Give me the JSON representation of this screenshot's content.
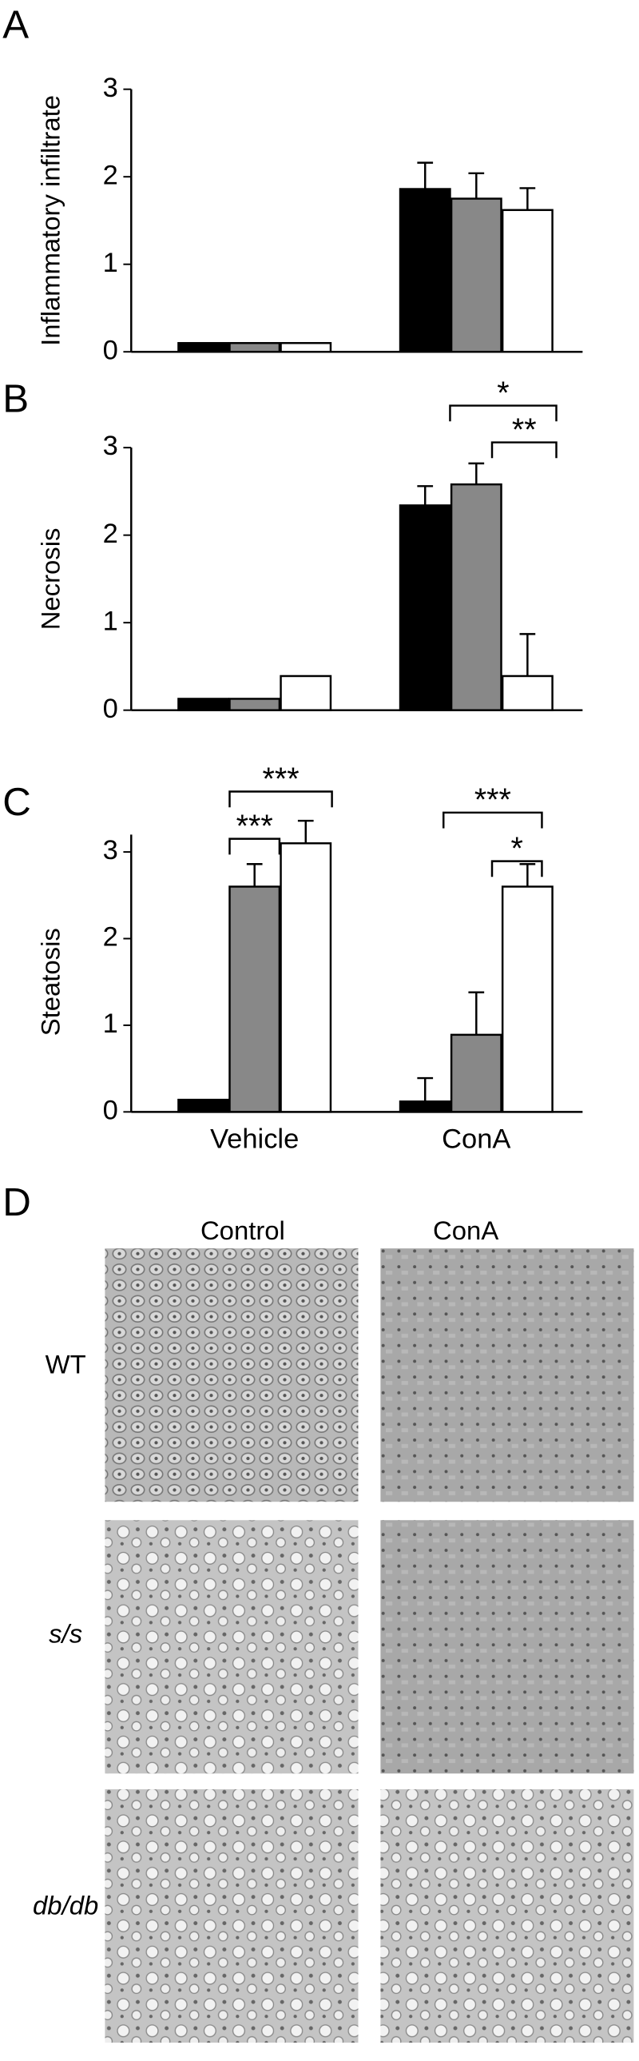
{
  "chart_data": [
    {
      "type": "bar",
      "panel": "A",
      "ylabel": "Inflammatory infiltrate",
      "categories": [
        null,
        null
      ],
      "series": [
        {
          "color": "#000000",
          "values": [
            0.1,
            1.86
          ],
          "errors": [
            null,
            0.3
          ]
        },
        {
          "color": "#888888",
          "values": [
            0.1,
            1.75
          ],
          "errors": [
            null,
            0.29
          ]
        },
        {
          "color": "#ffffff",
          "values": [
            0.1,
            1.62
          ],
          "errors": [
            null,
            0.25
          ]
        }
      ],
      "ylim": [
        0,
        3
      ],
      "yticks": [
        0,
        1,
        2,
        3
      ],
      "grid": false,
      "annotations": []
    },
    {
      "type": "bar",
      "panel": "B",
      "ylabel": "Necrosis",
      "categories": [
        null,
        null
      ],
      "series": [
        {
          "color": "#000000",
          "values": [
            0.13,
            2.34
          ],
          "errors": [
            null,
            0.22
          ]
        },
        {
          "color": "#888888",
          "values": [
            0.13,
            2.58
          ],
          "errors": [
            null,
            0.24
          ]
        },
        {
          "color": "#ffffff",
          "values": [
            0.39,
            0.39
          ],
          "errors": [
            null,
            0.48
          ]
        }
      ],
      "ylim": [
        0,
        3
      ],
      "yticks": [
        0,
        1,
        2,
        3
      ],
      "grid": false,
      "annotations": [
        {
          "text": "*"
        },
        {
          "text": "**"
        }
      ]
    },
    {
      "type": "bar",
      "panel": "C",
      "ylabel": "Steatosis",
      "categories": [
        "Vehicle",
        "ConA"
      ],
      "series": [
        {
          "color": "#000000",
          "values": [
            0.14,
            0.12
          ],
          "errors": [
            null,
            0.27
          ]
        },
        {
          "color": "#888888",
          "values": [
            2.6,
            0.89
          ],
          "errors": [
            0.26,
            0.49
          ]
        },
        {
          "color": "#ffffff",
          "values": [
            3.1,
            2.6
          ],
          "errors": [
            0.26,
            0.26
          ]
        }
      ],
      "ylim": [
        0,
        3.2
      ],
      "yticks": [
        0,
        1,
        2,
        3
      ],
      "grid": false,
      "annotations": [
        {
          "text": "***"
        },
        {
          "text": "***"
        },
        {
          "text": "***"
        },
        {
          "text": "*"
        }
      ]
    }
  ],
  "histology": {
    "panel": "D",
    "columns": [
      "Control",
      "ConA"
    ],
    "rows": [
      "WT",
      "s/s",
      "db/db"
    ]
  }
}
